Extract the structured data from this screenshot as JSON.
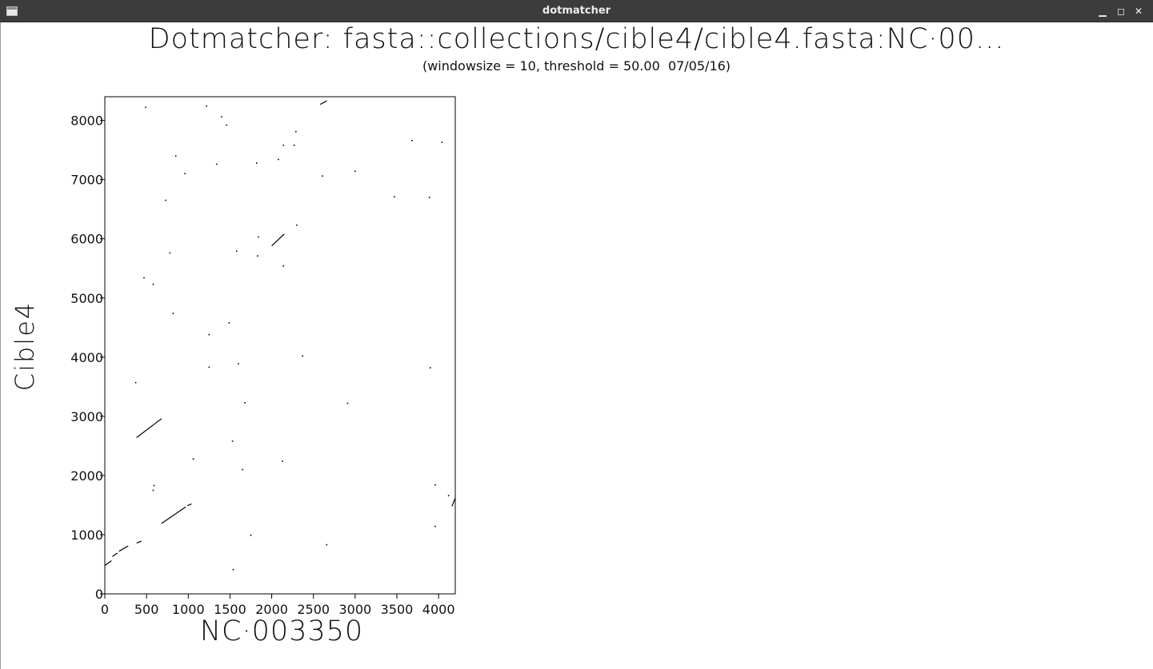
{
  "window": {
    "title": "dotmatcher",
    "icon": "app-window-icon",
    "controls": {
      "minimize": "▁",
      "maximize": "◻",
      "close": "✕"
    }
  },
  "chart_data": {
    "type": "scatter",
    "title": "Dotmatcher: fasta::collections/cible4/cible4.fasta:NC·00...",
    "subtitle": "(windowsize = 10, threshold = 50.00  07/05/16)",
    "xlabel": "NC·003350",
    "ylabel": "Cible4",
    "xlim": [
      0,
      4200
    ],
    "ylim": [
      0,
      8400
    ],
    "xticks": [
      0,
      500,
      1000,
      1500,
      2000,
      2500,
      3000,
      3500,
      4000
    ],
    "yticks": [
      0,
      1000,
      2000,
      3000,
      4000,
      5000,
      6000,
      7000,
      8000
    ],
    "grid": false,
    "color": "#000000",
    "segments": [
      {
        "x": [
          0,
          80
        ],
        "y": [
          480,
          560
        ]
      },
      {
        "x": [
          90,
          150
        ],
        "y": [
          630,
          690
        ]
      },
      {
        "x": [
          170,
          280
        ],
        "y": [
          720,
          810
        ]
      },
      {
        "x": [
          380,
          440
        ],
        "y": [
          860,
          890
        ]
      },
      {
        "x": [
          680,
          970
        ],
        "y": [
          1190,
          1470
        ]
      },
      {
        "x": [
          990,
          1040
        ],
        "y": [
          1490,
          1520
        ]
      },
      {
        "x": [
          380,
          680
        ],
        "y": [
          2640,
          2960
        ]
      },
      {
        "x": [
          2000,
          2150
        ],
        "y": [
          5880,
          6080
        ]
      },
      {
        "x": [
          2580,
          2660
        ],
        "y": [
          8270,
          8330
        ]
      },
      {
        "x": [
          4160,
          4200
        ],
        "y": [
          1480,
          1620
        ]
      }
    ],
    "points": [
      {
        "x": 490,
        "y": 8220
      },
      {
        "x": 1220,
        "y": 8240
      },
      {
        "x": 1400,
        "y": 8060
      },
      {
        "x": 1460,
        "y": 7920
      },
      {
        "x": 2290,
        "y": 7810
      },
      {
        "x": 2140,
        "y": 7580
      },
      {
        "x": 2270,
        "y": 7580
      },
      {
        "x": 3680,
        "y": 7660
      },
      {
        "x": 4040,
        "y": 7630
      },
      {
        "x": 850,
        "y": 7400
      },
      {
        "x": 1340,
        "y": 7260
      },
      {
        "x": 1820,
        "y": 7280
      },
      {
        "x": 2080,
        "y": 7340
      },
      {
        "x": 960,
        "y": 7100
      },
      {
        "x": 2610,
        "y": 7060
      },
      {
        "x": 3000,
        "y": 7140
      },
      {
        "x": 730,
        "y": 6650
      },
      {
        "x": 3470,
        "y": 6710
      },
      {
        "x": 3890,
        "y": 6700
      },
      {
        "x": 2300,
        "y": 6230
      },
      {
        "x": 1840,
        "y": 6030
      },
      {
        "x": 1580,
        "y": 5790
      },
      {
        "x": 1830,
        "y": 5710
      },
      {
        "x": 780,
        "y": 5760
      },
      {
        "x": 2140,
        "y": 5540
      },
      {
        "x": 470,
        "y": 5340
      },
      {
        "x": 580,
        "y": 5230
      },
      {
        "x": 820,
        "y": 4740
      },
      {
        "x": 1490,
        "y": 4580
      },
      {
        "x": 1250,
        "y": 4380
      },
      {
        "x": 2370,
        "y": 4020
      },
      {
        "x": 1600,
        "y": 3890
      },
      {
        "x": 1250,
        "y": 3830
      },
      {
        "x": 3900,
        "y": 3820
      },
      {
        "x": 370,
        "y": 3570
      },
      {
        "x": 1680,
        "y": 3230
      },
      {
        "x": 2910,
        "y": 3220
      },
      {
        "x": 1530,
        "y": 2580
      },
      {
        "x": 1060,
        "y": 2280
      },
      {
        "x": 2130,
        "y": 2240
      },
      {
        "x": 1650,
        "y": 2100
      },
      {
        "x": 3960,
        "y": 1840
      },
      {
        "x": 590,
        "y": 1830
      },
      {
        "x": 580,
        "y": 1750
      },
      {
        "x": 4120,
        "y": 1660
      },
      {
        "x": 3960,
        "y": 1140
      },
      {
        "x": 1750,
        "y": 990
      },
      {
        "x": 2660,
        "y": 830
      },
      {
        "x": 1540,
        "y": 410
      }
    ]
  }
}
